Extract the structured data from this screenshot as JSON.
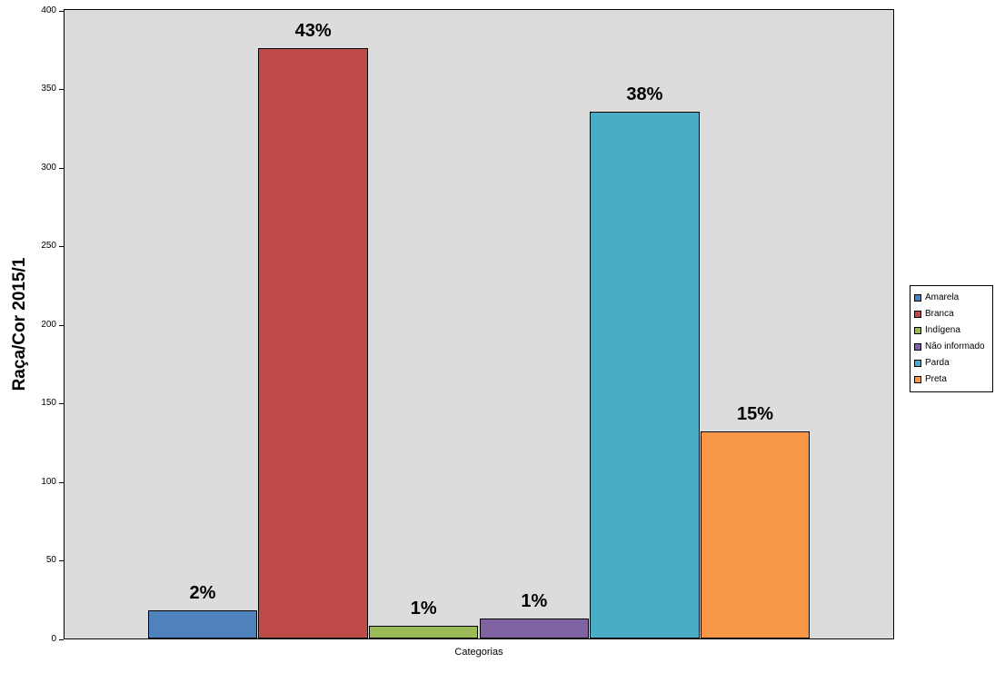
{
  "chart_data": {
    "type": "bar",
    "title": "",
    "xlabel": "Categorias",
    "ylabel": "Raça/Cor 2015/1",
    "ylim": [
      0,
      400
    ],
    "ytick_step": 50,
    "ytick_labels": [
      "0",
      "50",
      "100",
      "150",
      "200",
      "250",
      "300",
      "350",
      "400"
    ],
    "grid": false,
    "plot_background": "#DCDCDC",
    "legend_position": "right",
    "categories": [
      "Categorias"
    ],
    "series": [
      {
        "name": "Amarela",
        "value": 18,
        "percent_label": "2%",
        "color": "#4F81BD"
      },
      {
        "name": "Branca",
        "value": 376,
        "percent_label": "43%",
        "color": "#BE4B48"
      },
      {
        "name": "Indígena",
        "value": 8,
        "percent_label": "1%",
        "color": "#9BBB59"
      },
      {
        "name": "Não informado",
        "value": 13,
        "percent_label": "1%",
        "color": "#8064A2"
      },
      {
        "name": "Parda",
        "value": 335,
        "percent_label": "38%",
        "color": "#4BACC6"
      },
      {
        "name": "Preta",
        "value": 132,
        "percent_label": "15%",
        "color": "#F79646"
      }
    ]
  }
}
